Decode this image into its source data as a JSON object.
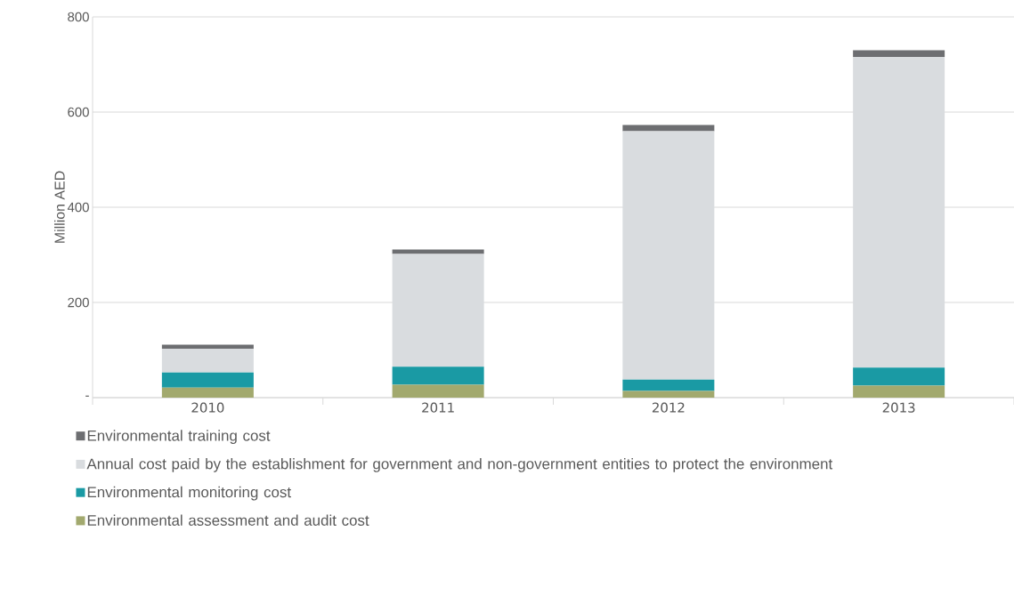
{
  "chart_data": {
    "type": "bar",
    "stacked": true,
    "ylabel": "Million AED",
    "categories": [
      "2010",
      "2011",
      "2012",
      "2013"
    ],
    "series": [
      {
        "name": "Environmental assessment and audit cost",
        "color": "#a2a96e",
        "values": [
          21,
          27,
          14,
          25
        ]
      },
      {
        "name": "Environmental monitoring cost",
        "color": "#1a9aa4",
        "values": [
          32,
          38,
          24,
          38
        ]
      },
      {
        "name": "Annual cost paid by the establishment for government and non-government entities to protect the environment",
        "color": "#d9dcdf",
        "values": [
          50,
          237,
          522,
          653
        ]
      },
      {
        "name": "Environmental training cost",
        "color": "#6d6e71",
        "values": [
          8,
          9,
          13,
          14
        ]
      }
    ],
    "ylim": [
      0,
      800
    ],
    "yticks": [
      {
        "value": 0,
        "label": "-"
      },
      200,
      400,
      600,
      800
    ],
    "grid": "y",
    "legend": "bottom"
  }
}
